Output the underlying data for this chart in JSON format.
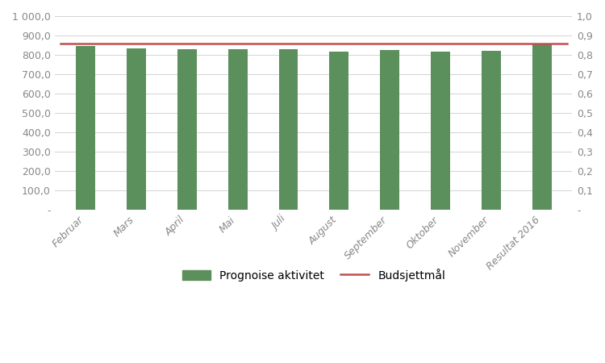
{
  "categories": [
    "Februar",
    "Mars",
    "April",
    "Mai",
    "Juli",
    "August",
    "September",
    "Oktober",
    "November",
    "Resultat 2016"
  ],
  "bar_values": [
    845,
    835,
    828,
    828,
    828,
    818,
    824,
    818,
    823,
    858
  ],
  "bar_color": "#5b8f5b",
  "budget_line_value": 860,
  "budget_line_color": "#c0504d",
  "left_ylim": [
    0,
    1000
  ],
  "left_yticks": [
    0,
    100,
    200,
    300,
    400,
    500,
    600,
    700,
    800,
    900,
    1000
  ],
  "left_yticklabels": [
    "-",
    "100,0",
    "200,0",
    "300,0",
    "400,0",
    "500,0",
    "600,0",
    "700,0",
    "800,0",
    "900,0",
    "1 000,0"
  ],
  "right_ylim": [
    0,
    1.0
  ],
  "right_yticks": [
    0.0,
    0.1,
    0.2,
    0.3,
    0.4,
    0.5,
    0.6,
    0.7,
    0.8,
    0.9,
    1.0
  ],
  "right_yticklabels": [
    "-",
    "0,1",
    "0,2",
    "0,3",
    "0,4",
    "0,5",
    "0,6",
    "0,7",
    "0,8",
    "0,9",
    "1,0"
  ],
  "legend_bar_label": "Prognoise aktivitet",
  "legend_line_label": "Budsjettmål",
  "background_color": "#ffffff",
  "grid_color": "#d3d3d3",
  "bar_edge_color": "none",
  "bar_width": 0.38,
  "tick_fontsize": 9,
  "legend_fontsize": 10
}
